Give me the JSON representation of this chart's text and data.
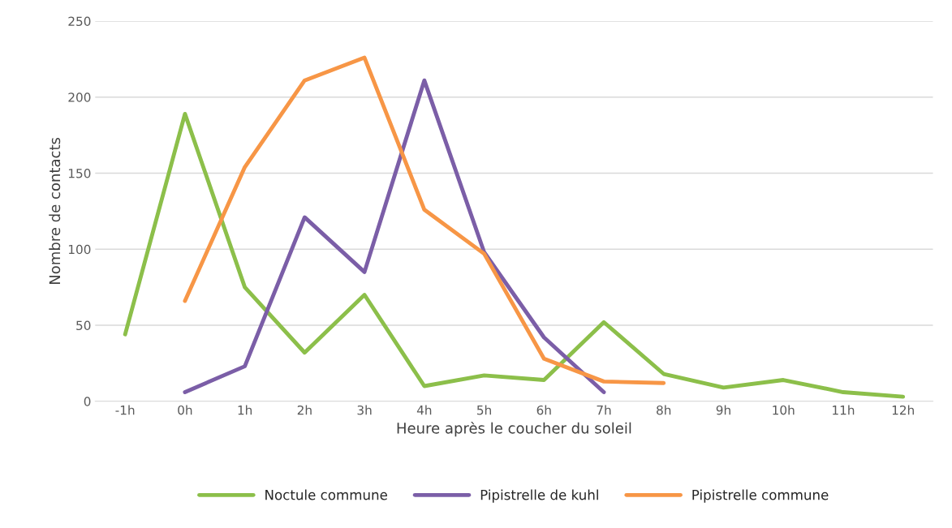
{
  "chart_data": {
    "type": "line",
    "xlabel": "Heure après le coucher du soleil",
    "ylabel": "Nombre de contacts",
    "categories": [
      "-1h",
      "0h",
      "1h",
      "2h",
      "3h",
      "4h",
      "5h",
      "6h",
      "7h",
      "8h",
      "9h",
      "10h",
      "11h",
      "12h"
    ],
    "series": [
      {
        "name": "Noctule commune",
        "color": "#8cbf4a",
        "values": [
          44,
          189,
          75,
          32,
          70,
          10,
          17,
          14,
          52,
          18,
          9,
          14,
          6,
          3
        ]
      },
      {
        "name": "Pipistrelle de kuhl",
        "color": "#7b5ea7",
        "values": [
          null,
          6,
          23,
          121,
          85,
          211,
          98,
          42,
          6,
          null,
          null,
          null,
          null,
          null
        ]
      },
      {
        "name": "Pipistrelle commune",
        "color": "#f79646",
        "values": [
          null,
          66,
          154,
          211,
          226,
          126,
          97,
          28,
          13,
          12,
          null,
          null,
          null,
          null
        ]
      }
    ],
    "ylim": [
      0,
      250
    ],
    "yticks": [
      0,
      50,
      100,
      150,
      200,
      250
    ],
    "grid": "y",
    "legend": "bottom",
    "marker": "none",
    "line_style": "solid"
  }
}
